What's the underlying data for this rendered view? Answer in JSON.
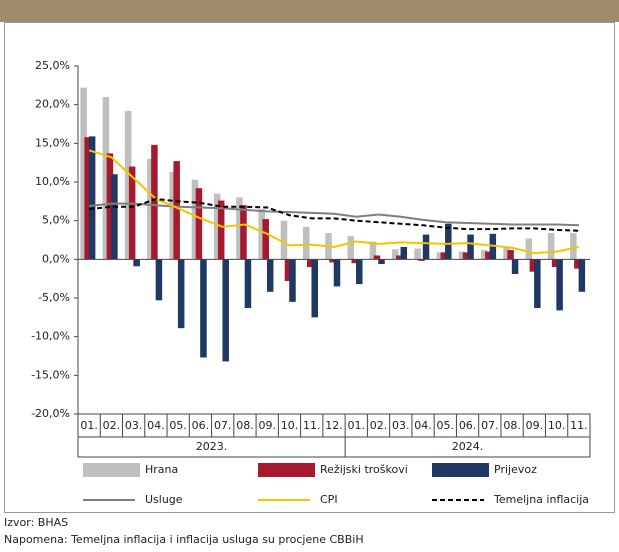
{
  "chart_data": {
    "type": "bar-line",
    "groups": [
      {
        "label": "2023.",
        "months": [
          "01.",
          "02.",
          "03.",
          "04.",
          "05.",
          "06.",
          "07.",
          "08.",
          "09.",
          "10.",
          "11.",
          "12."
        ]
      },
      {
        "label": "2024.",
        "months": [
          "01.",
          "02.",
          "03.",
          "04.",
          "05.",
          "06.",
          "07.",
          "08.",
          "09.",
          "10.",
          "11."
        ]
      }
    ],
    "series": [
      {
        "name": "Hrana",
        "kind": "bar",
        "color": "#bfbfbf",
        "values": [
          22.2,
          21.0,
          19.2,
          13.0,
          11.3,
          10.3,
          8.5,
          8.0,
          6.5,
          5.0,
          4.2,
          3.4,
          3.0,
          2.3,
          1.3,
          1.4,
          0.9,
          1.0,
          1.2,
          1.6,
          2.7,
          3.4,
          3.4
        ]
      },
      {
        "name": "Režijski troškovi",
        "kind": "bar",
        "color": "#a6192e",
        "values": [
          15.8,
          13.7,
          12.0,
          14.8,
          12.7,
          9.2,
          7.6,
          7.0,
          5.2,
          -2.8,
          -1.0,
          -0.4,
          -0.5,
          0.5,
          0.5,
          -0.2,
          0.9,
          0.9,
          1.0,
          1.2,
          -1.6,
          -1.0,
          -1.2
        ]
      },
      {
        "name": "Prijevoz",
        "kind": "bar",
        "color": "#1f3864",
        "values": [
          15.9,
          11.0,
          -0.9,
          -5.3,
          -8.9,
          -12.7,
          -13.2,
          -6.3,
          -4.2,
          -5.5,
          -7.5,
          -3.5,
          -3.2,
          -0.6,
          1.6,
          3.2,
          4.6,
          3.2,
          3.3,
          -1.9,
          -6.3,
          -6.6,
          -4.2
        ]
      },
      {
        "name": "Usluge",
        "kind": "line",
        "color": "#7f7f7f",
        "values": [
          6.9,
          7.2,
          7.2,
          7.0,
          6.8,
          6.7,
          6.6,
          6.4,
          6.2,
          6.1,
          6.0,
          5.9,
          5.5,
          5.8,
          5.5,
          5.1,
          4.8,
          4.7,
          4.6,
          4.5,
          4.5,
          4.5,
          4.4
        ]
      },
      {
        "name": "CPI",
        "kind": "line",
        "color": "#f5c400",
        "values": [
          14.1,
          13.2,
          10.5,
          7.8,
          6.6,
          5.3,
          4.2,
          4.5,
          3.3,
          1.8,
          1.9,
          1.6,
          2.3,
          2.0,
          2.2,
          2.1,
          2.0,
          2.1,
          1.8,
          1.5,
          0.8,
          1.0,
          1.6
        ]
      },
      {
        "name": "Temeljna inflacija",
        "kind": "line",
        "dashed": true,
        "color": "#000000",
        "values": [
          6.5,
          6.8,
          6.8,
          7.8,
          7.5,
          7.3,
          6.8,
          6.8,
          6.7,
          5.7,
          5.3,
          5.3,
          5.0,
          4.8,
          4.6,
          4.4,
          4.1,
          3.9,
          3.9,
          4.0,
          4.0,
          3.8,
          3.7
        ]
      }
    ],
    "ylim": [
      -20,
      25
    ],
    "yticks": [
      {
        "value": -20,
        "label": "-20,0%"
      },
      {
        "value": -15,
        "label": "-15,0%"
      },
      {
        "value": -10,
        "label": "-10,0%"
      },
      {
        "value": -5,
        "label": "-5,0%"
      },
      {
        "value": 0,
        "label": "0,0%"
      },
      {
        "value": 5,
        "label": "5,0%"
      },
      {
        "value": 10,
        "label": "10,0%"
      },
      {
        "value": 15,
        "label": "15,0%"
      },
      {
        "value": 20,
        "label": "20,0%"
      },
      {
        "value": 25,
        "label": "25,0%"
      }
    ],
    "grid": false,
    "source": "Izvor: BHAS",
    "note": "Napomena: Temeljna inflacija i inflacija usluga su procjene CBBiH"
  }
}
